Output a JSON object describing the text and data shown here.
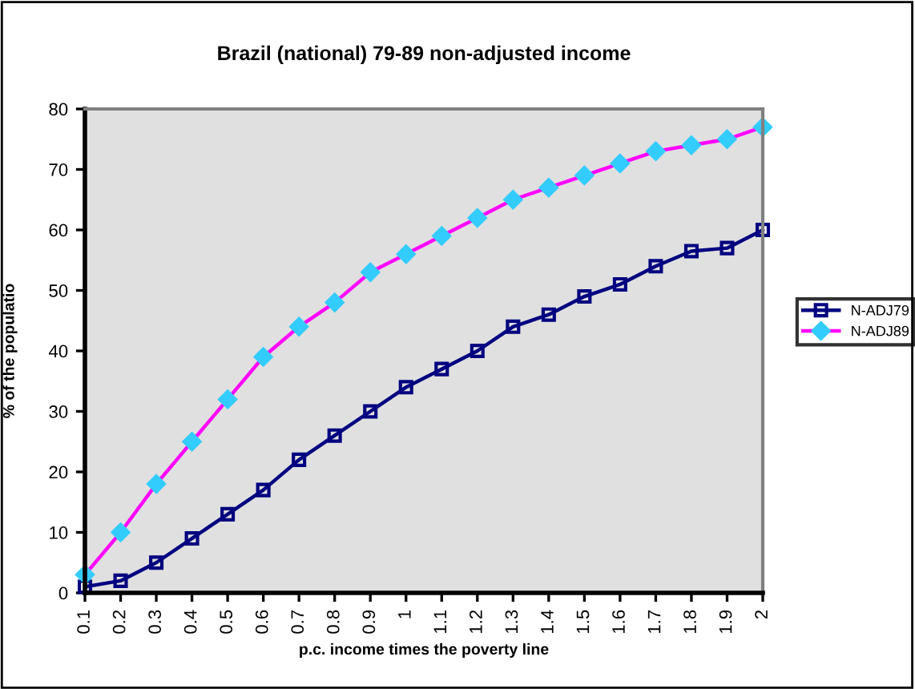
{
  "chart_data": {
    "type": "line",
    "title": "Brazil (national) 79-89 non-adjusted income",
    "xlabel": "p.c. income times the poverty line",
    "ylabel": "% of the populatio",
    "categories": [
      "0.1",
      "0.2",
      "0.3",
      "0.4",
      "0.5",
      "0.6",
      "0.7",
      "0.8",
      "0.9",
      "1",
      "1.1",
      "1.2",
      "1.3",
      "1.4",
      "1.5",
      "1.6",
      "1.7",
      "1.8",
      "1.9",
      "2"
    ],
    "series": [
      {
        "name": "N-ADJ79",
        "color": "#000080",
        "marker": "square",
        "values": [
          1,
          2,
          5,
          9,
          13,
          17,
          22,
          26,
          30,
          34,
          37,
          40,
          44,
          46,
          49,
          51,
          54,
          56.5,
          57,
          60
        ]
      },
      {
        "name": "N-ADJ89",
        "color": "#ff00ff",
        "marker": "diamond",
        "values": [
          3,
          10,
          18,
          25,
          32,
          39,
          44,
          48,
          53,
          56,
          59,
          62,
          65,
          67,
          69,
          71,
          73,
          74,
          75,
          77
        ]
      }
    ],
    "ylim": [
      0,
      80
    ],
    "yticks": [
      0,
      10,
      20,
      30,
      40,
      50,
      60,
      70,
      80
    ],
    "grid": false,
    "legend": "right",
    "line_style": "solid"
  }
}
